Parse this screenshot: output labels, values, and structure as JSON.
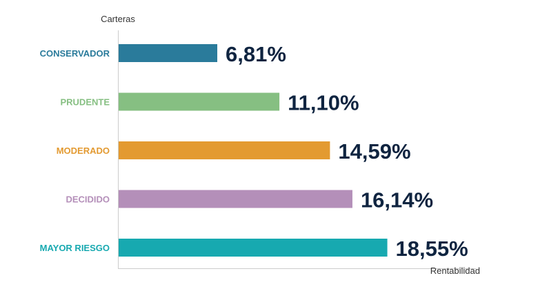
{
  "chart_data": {
    "type": "bar",
    "orientation": "horizontal",
    "ylabel": "Carteras",
    "xlabel": "Rentabilidad",
    "categories": [
      "CONSERVADOR",
      "PRUDENTE",
      "MODERADO",
      "DECIDIDO",
      "MAYOR RIESGO"
    ],
    "values": [
      6.81,
      11.1,
      14.59,
      16.14,
      18.55
    ],
    "value_labels": [
      "6,81%",
      "11,10%",
      "14,59%",
      "16,14%",
      "18,55%"
    ],
    "colors": [
      "#2a7b9b",
      "#86bf82",
      "#e39a31",
      "#b48fb9",
      "#17a9b0"
    ],
    "xlim": [
      0,
      20
    ],
    "grid": false,
    "legend": "none"
  }
}
